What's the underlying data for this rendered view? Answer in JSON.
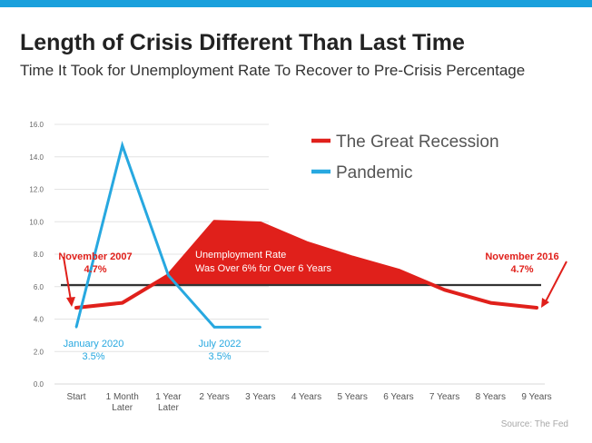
{
  "title": "Length of Crisis Different Than Last Time",
  "subtitle": "Time It Took for Unemployment Rate To Recover to Pre-Crisis Percentage",
  "source": "Source: The Fed",
  "colors": {
    "accent_bar": "#1aa0dc",
    "recession": "#e0201b",
    "pandemic": "#27a8e0",
    "threshold": "#333333"
  },
  "chart_data": {
    "type": "line",
    "title": "Length of Crisis Different Than Last Time",
    "xlabel": "",
    "ylabel": "",
    "ylim": [
      0,
      16
    ],
    "yticks": [
      "0.0",
      "2.0",
      "4.0",
      "6.0",
      "8.0",
      "10.0",
      "12.0",
      "14.0",
      "16.0"
    ],
    "categories": [
      [
        "Start"
      ],
      [
        "1 Month",
        "Later"
      ],
      [
        "1 Year",
        "Later"
      ],
      [
        "2 Years"
      ],
      [
        "3 Years"
      ],
      [
        "4 Years"
      ],
      [
        "5 Years"
      ],
      [
        "6 Years"
      ],
      [
        "7 Years"
      ],
      [
        "8 Years"
      ],
      [
        "9 Years"
      ]
    ],
    "threshold": 6.1,
    "series": [
      {
        "name": "The Great Recession",
        "color": "#e0201b",
        "values": [
          4.7,
          5.0,
          6.7,
          10.0,
          9.9,
          8.7,
          7.8,
          7.0,
          5.8,
          5.0,
          4.7
        ]
      },
      {
        "name": "Pandemic",
        "color": "#27a8e0",
        "values": [
          3.5,
          14.7,
          6.7,
          3.5,
          3.5,
          null,
          null,
          null,
          null,
          null,
          null
        ]
      }
    ],
    "legend": [
      "The Great Recession",
      "Pandemic"
    ],
    "annotations": [
      {
        "id": "nov2007",
        "lines": [
          "November 2007",
          "4.7%"
        ]
      },
      {
        "id": "jan2020",
        "lines": [
          "January 2020",
          "3.5%"
        ]
      },
      {
        "id": "jul2022",
        "lines": [
          "July 2022",
          "3.5%"
        ]
      },
      {
        "id": "nov2016",
        "lines": [
          "November 2016",
          "4.7%"
        ]
      },
      {
        "id": "shaded",
        "lines": [
          "Unemployment Rate",
          "Was Over 6% for Over 6 Years"
        ]
      }
    ]
  }
}
